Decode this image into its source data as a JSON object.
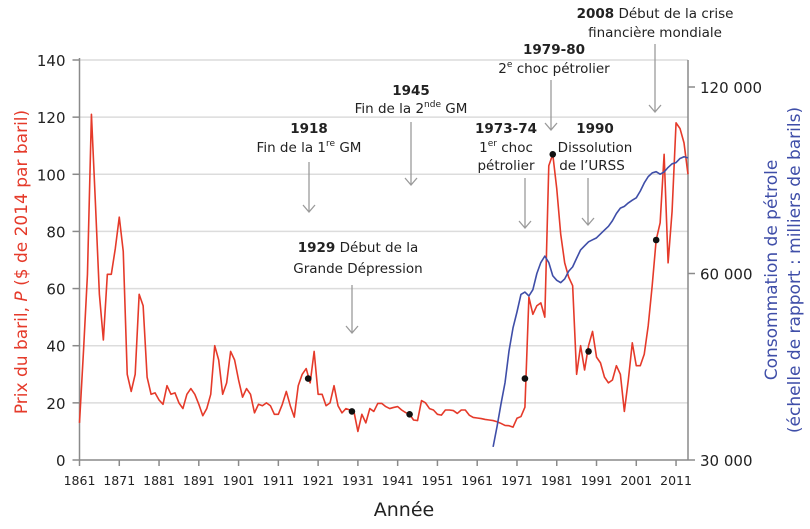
{
  "chart_data": {
    "type": "line",
    "xlabel": "Année",
    "ylabel_left": "Prix du baril, P ($ de 2014 par baril)",
    "ylabel_left_parts": {
      "a": "Prix du baril, ",
      "p": "P",
      "b": " ($ de 2014 par baril)"
    },
    "ylabel_right": [
      "Consommation de pétrole",
      "(échelle de rapport : milliers de barils)"
    ],
    "xlim": [
      1861,
      2014
    ],
    "ylim_left": [
      0,
      140
    ],
    "ylim_right": [
      30000,
      120000
    ],
    "right_scale": "log",
    "grid": true,
    "x_ticks": [
      "1861",
      "1871",
      "1881",
      "1891",
      "1901",
      "1911",
      "1921",
      "1931",
      "1941",
      "1951",
      "1961",
      "1971",
      "1981",
      "1991",
      "2001",
      "2011"
    ],
    "y_ticks_left": [
      "0",
      "20",
      "40",
      "60",
      "80",
      "100",
      "120",
      "140"
    ],
    "y_ticks_right": [
      {
        "value": 30000,
        "label": "30 000"
      },
      {
        "value": 60000,
        "label": "60 000"
      },
      {
        "value": 120000,
        "label": "120 000"
      }
    ],
    "colors": {
      "price": "#e53a2a",
      "consumption": "#3f4ea8",
      "grid": "#dcdcdc",
      "axis": "#8a8a8a",
      "arrow": "#9a9a9a"
    },
    "series": [
      {
        "axis": "left",
        "x": [
          1861,
          1862,
          1863,
          1864,
          1865,
          1866,
          1867,
          1868,
          1869,
          1870,
          1871,
          1872,
          1873,
          1874,
          1875,
          1876,
          1877,
          1878,
          1879,
          1880,
          1881,
          1882,
          1883,
          1884,
          1885,
          1886,
          1887,
          1888,
          1889,
          1890,
          1891,
          1892,
          1893,
          1894,
          1895,
          1896,
          1897,
          1898,
          1899,
          1900,
          1901,
          1902,
          1903,
          1904,
          1905,
          1906,
          1907,
          1908,
          1909,
          1910,
          1911,
          1912,
          1913,
          1914,
          1915,
          1916,
          1917,
          1918,
          1919,
          1920,
          1921,
          1922,
          1923,
          1924,
          1925,
          1926,
          1927,
          1928,
          1929,
          1930,
          1931,
          1932,
          1933,
          1934,
          1935,
          1936,
          1937,
          1938,
          1939,
          1940,
          1941,
          1942,
          1943,
          1944,
          1945,
          1946,
          1947,
          1948,
          1949,
          1950,
          1951,
          1952,
          1953,
          1954,
          1955,
          1956,
          1957,
          1958,
          1959,
          1960,
          1961,
          1962,
          1963,
          1964,
          1965,
          1966,
          1967,
          1968,
          1969,
          1970,
          1971,
          1972,
          1973,
          1974,
          1975,
          1976,
          1977,
          1978,
          1979,
          1980,
          1981,
          1982,
          1983,
          1984,
          1985,
          1986,
          1987,
          1988,
          1989,
          1990,
          1991,
          1992,
          1993,
          1994,
          1995,
          1996,
          1997,
          1998,
          1999,
          2000,
          2001,
          2002,
          2003,
          2004,
          2005,
          2006,
          2007,
          2008,
          2009,
          2010,
          2011,
          2012,
          2013,
          2014
        ],
        "values": [
          13,
          38,
          65,
          121,
          90,
          58,
          42,
          65,
          65,
          74,
          85,
          73,
          30,
          24,
          30,
          58,
          54,
          29,
          23,
          23.5,
          21,
          19.5,
          26,
          23,
          23.5,
          20,
          18,
          23,
          25,
          23,
          19.5,
          15.5,
          18,
          23,
          40,
          35,
          23,
          27,
          38,
          35,
          28,
          22,
          25,
          23,
          16.5,
          19.5,
          19,
          20,
          19,
          16,
          16,
          19.5,
          24,
          19,
          15,
          26,
          30,
          32,
          27,
          38,
          23,
          23,
          19,
          20,
          26,
          19,
          16.5,
          18,
          17.5,
          17,
          10,
          16,
          13,
          18,
          17,
          19.8,
          19.8,
          18.7,
          18,
          18.4,
          18.7,
          17.5,
          16.6,
          16,
          14,
          13.8,
          20.8,
          20,
          18,
          17.5,
          16,
          15.7,
          17.5,
          17.5,
          17.3,
          16.3,
          17.5,
          17.5,
          15.7,
          14.9,
          14.7,
          14.5,
          14.2,
          14,
          13.8,
          13.4,
          12.8,
          12.1,
          12,
          11.5,
          14.6,
          15.2,
          18.5,
          57,
          51,
          54,
          55,
          50,
          103,
          107,
          95,
          79,
          69,
          64,
          61,
          30,
          40,
          31.5,
          40,
          45,
          36,
          34,
          29,
          27,
          28,
          33,
          30,
          17,
          28,
          41,
          33,
          33,
          37,
          47,
          61,
          77,
          83,
          107,
          69,
          87,
          118,
          116,
          111,
          100
        ]
      },
      {
        "axis": "right",
        "x": [
          1965,
          1966,
          1967,
          1968,
          1969,
          1970,
          1971,
          1972,
          1973,
          1974,
          1975,
          1976,
          1977,
          1978,
          1979,
          1980,
          1981,
          1982,
          1983,
          1984,
          1985,
          1986,
          1987,
          1988,
          1989,
          1990,
          1991,
          1992,
          1993,
          1994,
          1995,
          1996,
          1997,
          1998,
          1999,
          2000,
          2001,
          2002,
          2003,
          2004,
          2005,
          2006,
          2007,
          2008,
          2009,
          2010,
          2011,
          2012,
          2013,
          2014
        ],
        "values": [
          31500,
          34000,
          37000,
          40000,
          45000,
          49000,
          52000,
          55500,
          56000,
          55200,
          56500,
          60000,
          62500,
          64000,
          62500,
          59500,
          58500,
          58000,
          58800,
          60500,
          61500,
          63500,
          65500,
          66500,
          67500,
          68000,
          68500,
          69500,
          70500,
          71500,
          73000,
          75000,
          76500,
          77000,
          78000,
          78800,
          79500,
          81500,
          84000,
          86000,
          87200,
          87600,
          86800,
          87500,
          89000,
          90200,
          90600,
          92000,
          92600,
          92200
        ]
      }
    ],
    "event_markers": [
      [
        1918.5,
        28.5
      ],
      [
        1929.5,
        17
      ],
      [
        1944,
        16
      ],
      [
        1973,
        28.5
      ],
      [
        1980,
        107
      ],
      [
        1989,
        38
      ],
      [
        2006,
        77
      ]
    ],
    "annotations": [
      {
        "year": "2008",
        "lines": [
          "Début de la crise",
          "financière mondiale"
        ]
      },
      {
        "year": "1979-80",
        "lines": [
          "2",
          "e",
          " choc pétrolier"
        ]
      },
      {
        "year": "1945",
        "lines": [
          "Fin de la 2",
          "nde",
          " GM"
        ]
      },
      {
        "year": "1918",
        "lines": [
          "Fin de la 1",
          "re",
          " GM"
        ]
      },
      {
        "year": "1973-74",
        "lines": [
          "1",
          "er",
          " choc",
          "pétrolier"
        ]
      },
      {
        "year": "1990",
        "lines": [
          "Dissolution",
          "de l’URSS"
        ]
      },
      {
        "year": "1929",
        "lines": [
          "Début de la",
          "Grande Dépression"
        ]
      }
    ]
  }
}
